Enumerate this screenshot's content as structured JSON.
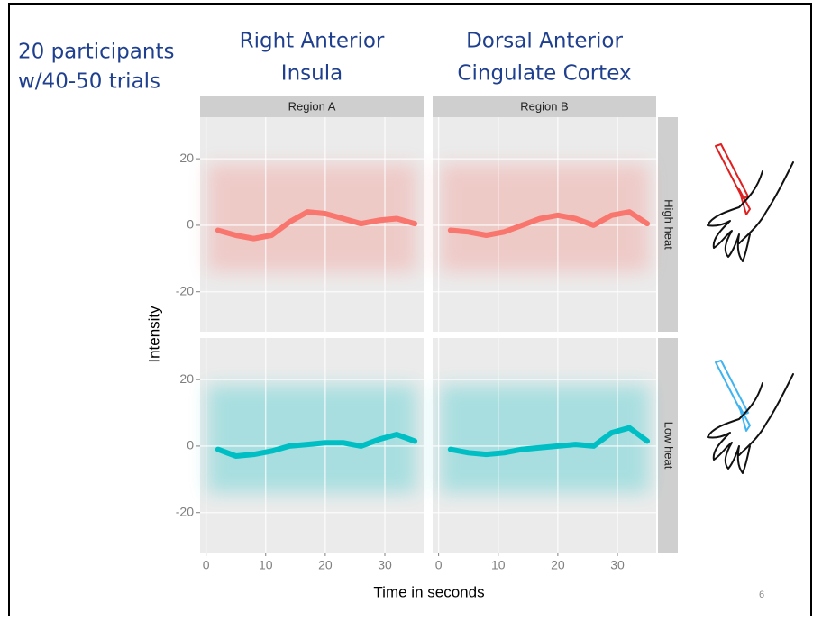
{
  "slide": {
    "note": [
      "20 participants",
      "w/40-50 trials"
    ],
    "column_titles": [
      [
        "Right Anterior",
        "Insula"
      ],
      [
        "Dorsal Anterior",
        "Cingulate Cortex"
      ]
    ],
    "page_number": "6"
  },
  "facets": {
    "columns": [
      "Region A",
      "Region B"
    ],
    "rows": [
      "High heat",
      "Low heat"
    ]
  },
  "axes": {
    "x_label": "Time in seconds",
    "y_label": "Intensity"
  },
  "chart_data": [
    {
      "type": "line",
      "x": [
        2,
        5,
        8,
        11,
        14,
        17,
        20,
        23,
        26,
        29,
        32,
        35
      ],
      "series": [
        {
          "color": "#f8766d",
          "values": [
            -1.5,
            -3,
            -4,
            -3,
            1,
            4,
            3.5,
            2,
            0.5,
            1.5,
            2,
            0.5
          ]
        }
      ],
      "xlim": [
        -1,
        36.5
      ],
      "ylim": [
        -32,
        32.5
      ],
      "xticks": [
        0,
        10,
        20,
        30
      ],
      "yticks": [
        -20,
        0,
        20
      ],
      "grid": true
    },
    {
      "type": "line",
      "x": [
        2,
        5,
        8,
        11,
        14,
        17,
        20,
        23,
        26,
        29,
        32,
        35
      ],
      "series": [
        {
          "color": "#f8766d",
          "values": [
            -1.5,
            -2,
            -3,
            -2,
            0,
            2,
            3,
            2,
            0,
            3,
            4,
            0.5
          ]
        }
      ],
      "xlim": [
        -1,
        36.5
      ],
      "ylim": [
        -32,
        32.5
      ],
      "xticks": [
        0,
        10,
        20,
        30
      ],
      "yticks": [
        -20,
        0,
        20
      ],
      "grid": true
    },
    {
      "type": "line",
      "x": [
        2,
        5,
        8,
        11,
        14,
        17,
        20,
        23,
        26,
        29,
        32,
        35
      ],
      "series": [
        {
          "color": "#00bfc4",
          "values": [
            -1,
            -3,
            -2.5,
            -1.5,
            0,
            0.5,
            1,
            1,
            0,
            2,
            3.5,
            1.5
          ]
        }
      ],
      "xlim": [
        -1,
        36.5
      ],
      "ylim": [
        -32,
        32.5
      ],
      "xticks": [
        0,
        10,
        20,
        30
      ],
      "yticks": [
        -20,
        0,
        20
      ],
      "grid": true
    },
    {
      "type": "line",
      "x": [
        2,
        5,
        8,
        11,
        14,
        17,
        20,
        23,
        26,
        29,
        32,
        35
      ],
      "series": [
        {
          "color": "#00bfc4",
          "values": [
            -1,
            -2,
            -2.5,
            -2,
            -1,
            -0.5,
            0,
            0.5,
            0,
            4,
            5.5,
            1.5
          ]
        }
      ],
      "xlim": [
        -1,
        36.5
      ],
      "ylim": [
        -32,
        32.5
      ],
      "xticks": [
        0,
        10,
        20,
        30
      ],
      "yticks": [
        -20,
        0,
        20
      ],
      "grid": true
    }
  ]
}
